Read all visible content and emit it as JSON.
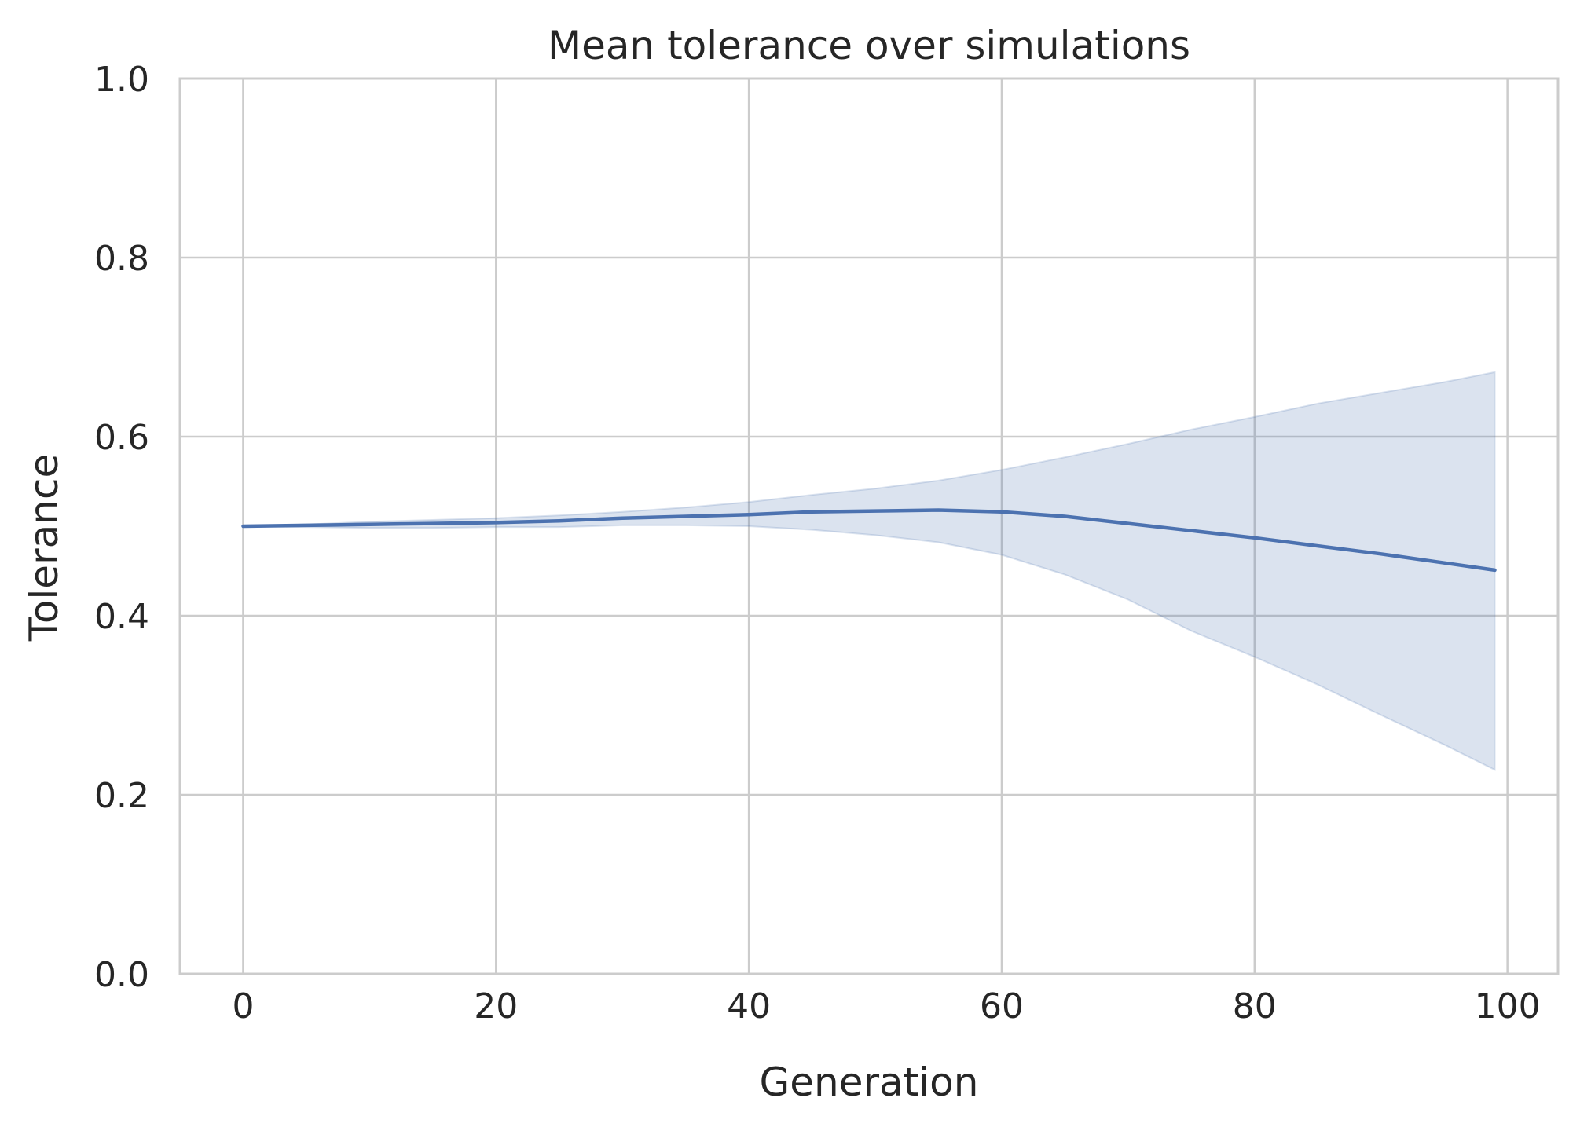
{
  "chart_data": {
    "type": "line",
    "title": "Mean tolerance over simulations",
    "xlabel": "Generation",
    "ylabel": "Tolerance",
    "xlim": [
      -5,
      104
    ],
    "ylim": [
      0.0,
      1.0
    ],
    "xticks": [
      0,
      20,
      40,
      60,
      80,
      100
    ],
    "yticks": [
      0.0,
      0.2,
      0.4,
      0.6,
      0.8,
      1.0
    ],
    "xtick_labels": [
      "0",
      "20",
      "40",
      "60",
      "80",
      "100"
    ],
    "ytick_labels": [
      "0.0",
      "0.2",
      "0.4",
      "0.6",
      "0.8",
      "1.0"
    ],
    "grid": true,
    "colors": {
      "line": "#4c72b0",
      "band": "#4c72b0",
      "grid": "#cccccc",
      "spine": "#cccccc"
    },
    "series": [
      {
        "x": [
          0,
          5,
          10,
          15,
          20,
          25,
          30,
          35,
          40,
          45,
          50,
          55,
          60,
          65,
          70,
          75,
          80,
          85,
          90,
          95,
          99
        ],
        "mean": [
          0.5,
          0.501,
          0.502,
          0.503,
          0.504,
          0.506,
          0.509,
          0.511,
          0.513,
          0.516,
          0.517,
          0.518,
          0.516,
          0.511,
          0.503,
          0.495,
          0.487,
          0.478,
          0.469,
          0.459,
          0.451
        ],
        "lower": [
          0.5,
          0.499,
          0.498,
          0.498,
          0.499,
          0.499,
          0.501,
          0.501,
          0.5,
          0.496,
          0.49,
          0.482,
          0.468,
          0.446,
          0.418,
          0.383,
          0.354,
          0.323,
          0.289,
          0.256,
          0.228
        ],
        "upper": [
          0.5,
          0.502,
          0.505,
          0.507,
          0.509,
          0.512,
          0.516,
          0.521,
          0.527,
          0.535,
          0.542,
          0.551,
          0.563,
          0.577,
          0.592,
          0.608,
          0.622,
          0.637,
          0.649,
          0.661,
          0.672
        ]
      }
    ]
  }
}
